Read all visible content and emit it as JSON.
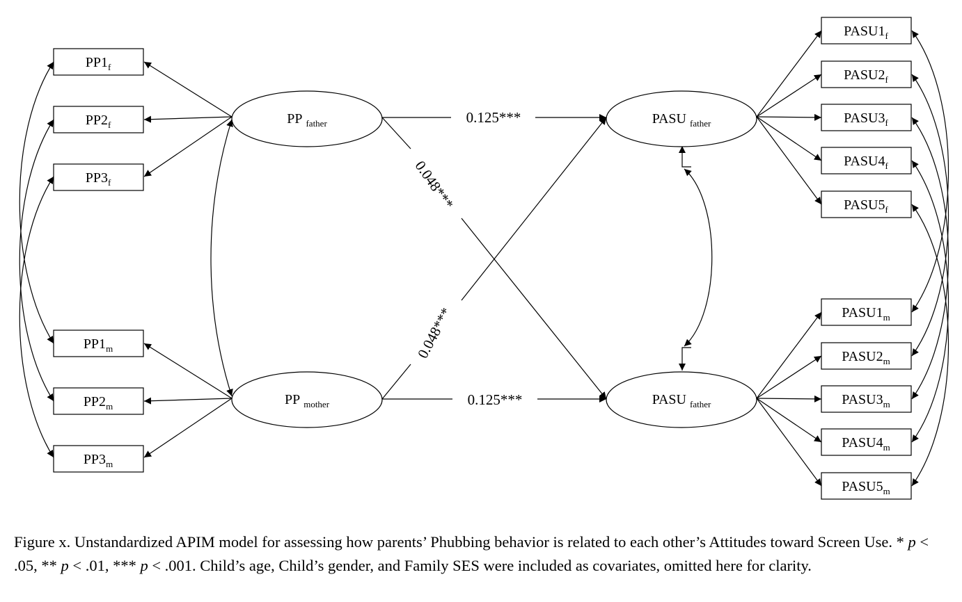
{
  "indicators": {
    "pp1f": {
      "base": "PP1",
      "sub": "f"
    },
    "pp2f": {
      "base": "PP2",
      "sub": "f"
    },
    "pp3f": {
      "base": "PP3",
      "sub": "f"
    },
    "pp1m": {
      "base": "PP1",
      "sub": "m"
    },
    "pp2m": {
      "base": "PP2",
      "sub": "m"
    },
    "pp3m": {
      "base": "PP3",
      "sub": "m"
    },
    "pasu1f": {
      "base": "PASU1",
      "sub": "f"
    },
    "pasu2f": {
      "base": "PASU2",
      "sub": "f"
    },
    "pasu3f": {
      "base": "PASU3",
      "sub": "f"
    },
    "pasu4f": {
      "base": "PASU4",
      "sub": "f"
    },
    "pasu5f": {
      "base": "PASU5",
      "sub": "f"
    },
    "pasu1m": {
      "base": "PASU1",
      "sub": "m"
    },
    "pasu2m": {
      "base": "PASU2",
      "sub": "m"
    },
    "pasu3m": {
      "base": "PASU3",
      "sub": "m"
    },
    "pasu4m": {
      "base": "PASU4",
      "sub": "m"
    },
    "pasu5m": {
      "base": "PASU5",
      "sub": "m"
    }
  },
  "latents": {
    "pp_father": {
      "base": "PP",
      "sub": "father"
    },
    "pp_mother": {
      "base": "PP",
      "sub": "mother"
    },
    "pasu_top": {
      "base": "PASU",
      "sub": "father"
    },
    "pasu_bottom": {
      "base": "PASU",
      "sub": "father"
    }
  },
  "paths": {
    "actor_father": "0.125***",
    "actor_mother": "0.125***",
    "partner_father_to_mother": "0.048***",
    "partner_mother_to_father": "0.048***"
  },
  "caption": {
    "line1_text": "Figure x. Unstandardized APIM model for assessing how parents’ Phubbing behavior is related to each other’s Attitudes toward Screen Use. * ",
    "p1": "p",
    "t1": " < .05, ** ",
    "p2": "p",
    "t2": " < .01, *** ",
    "p3": "p",
    "t3": " < .001. Child’s age, Child’s gender, and Family SES were included as covariates, omitted here for clarity."
  }
}
